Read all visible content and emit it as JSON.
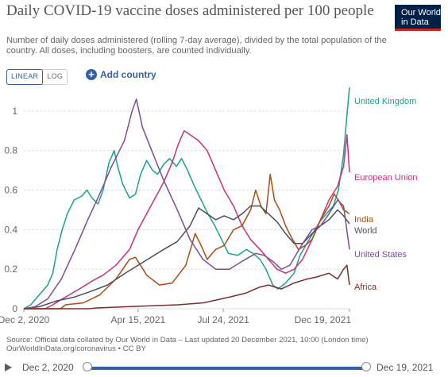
{
  "header": {
    "title": "Daily COVID-19 vaccine doses administered per 100 people",
    "subtitle": "Number of daily doses administered (rolling 7-day average), divided by the total population of the country. All doses, including boosters, are counted individually.",
    "logo_line1": "Our World",
    "logo_line2": "in Data"
  },
  "controls": {
    "linear_label": "LINEAR",
    "log_label": "LOG",
    "add_country_label": "Add country"
  },
  "colors": {
    "United Kingdom": "#18a28f",
    "European Union": "#cf2f76",
    "India": "#b04a12",
    "World": "#4a4f5e",
    "United States": "#7b4d9c",
    "Africa": "#7c2f2a"
  },
  "chart_data": {
    "type": "line",
    "title": "Daily COVID-19 vaccine doses administered per 100 people",
    "x_ticks": [
      "Dec 2, 2020",
      "Apr 15, 2021",
      "Jul 24, 2021",
      "Dec 19, 2021"
    ],
    "x_range": [
      "2020-12-02",
      "2021-12-19"
    ],
    "y_ticks": [
      "0",
      "0.2",
      "0.4",
      "0.6",
      "0.8",
      "1"
    ],
    "ylim": [
      0,
      1.12
    ],
    "grid": "horizontal dashed",
    "legend": "right, line-end labels",
    "series": [
      {
        "name": "United Kingdom",
        "points": [
          [
            "2020-12-02",
            0
          ],
          [
            "2020-12-10",
            0.02
          ],
          [
            "2020-12-20",
            0.07
          ],
          [
            "2020-12-30",
            0.12
          ],
          [
            "2021-01-05",
            0.18
          ],
          [
            "2021-01-10",
            0.3
          ],
          [
            "2021-01-16",
            0.4
          ],
          [
            "2021-01-22",
            0.48
          ],
          [
            "2021-01-30",
            0.55
          ],
          [
            "2021-02-08",
            0.57
          ],
          [
            "2021-02-14",
            0.6
          ],
          [
            "2021-02-20",
            0.56
          ],
          [
            "2021-02-27",
            0.53
          ],
          [
            "2021-03-05",
            0.6
          ],
          [
            "2021-03-12",
            0.74
          ],
          [
            "2021-03-18",
            0.8
          ],
          [
            "2021-03-22",
            0.72
          ],
          [
            "2021-03-28",
            0.63
          ],
          [
            "2021-04-05",
            0.56
          ],
          [
            "2021-04-12",
            0.58
          ],
          [
            "2021-04-18",
            0.68
          ],
          [
            "2021-04-25",
            0.75
          ],
          [
            "2021-05-02",
            0.7
          ],
          [
            "2021-05-08",
            0.68
          ],
          [
            "2021-05-15",
            0.73
          ],
          [
            "2021-05-22",
            0.76
          ],
          [
            "2021-05-30",
            0.72
          ],
          [
            "2021-06-05",
            0.76
          ],
          [
            "2021-06-12",
            0.7
          ],
          [
            "2021-06-20",
            0.62
          ],
          [
            "2021-06-28",
            0.55
          ],
          [
            "2021-07-06",
            0.48
          ],
          [
            "2021-07-14",
            0.42
          ],
          [
            "2021-07-22",
            0.35
          ],
          [
            "2021-07-30",
            0.28
          ],
          [
            "2021-08-10",
            0.27
          ],
          [
            "2021-08-20",
            0.3
          ],
          [
            "2021-08-28",
            0.28
          ],
          [
            "2021-09-05",
            0.25
          ],
          [
            "2021-09-12",
            0.2
          ],
          [
            "2021-09-20",
            0.12
          ],
          [
            "2021-09-26",
            0.1
          ],
          [
            "2021-10-05",
            0.13
          ],
          [
            "2021-10-15",
            0.18
          ],
          [
            "2021-10-22",
            0.27
          ],
          [
            "2021-10-30",
            0.33
          ],
          [
            "2021-11-06",
            0.38
          ],
          [
            "2021-11-14",
            0.44
          ],
          [
            "2021-11-22",
            0.48
          ],
          [
            "2021-11-30",
            0.52
          ],
          [
            "2021-12-06",
            0.6
          ],
          [
            "2021-12-12",
            0.78
          ],
          [
            "2021-12-16",
            0.98
          ],
          [
            "2021-12-19",
            1.12
          ]
        ]
      },
      {
        "name": "European Union",
        "points": [
          [
            "2020-12-02",
            0
          ],
          [
            "2020-12-27",
            0
          ],
          [
            "2021-01-05",
            0.02
          ],
          [
            "2021-01-20",
            0.06
          ],
          [
            "2021-02-05",
            0.1
          ],
          [
            "2021-02-20",
            0.14
          ],
          [
            "2021-03-05",
            0.17
          ],
          [
            "2021-03-20",
            0.22
          ],
          [
            "2021-04-05",
            0.3
          ],
          [
            "2021-04-15",
            0.4
          ],
          [
            "2021-04-25",
            0.48
          ],
          [
            "2021-05-05",
            0.56
          ],
          [
            "2021-05-15",
            0.64
          ],
          [
            "2021-05-25",
            0.74
          ],
          [
            "2021-06-01",
            0.83
          ],
          [
            "2021-06-08",
            0.9
          ],
          [
            "2021-06-15",
            0.88
          ],
          [
            "2021-06-25",
            0.85
          ],
          [
            "2021-07-05",
            0.8
          ],
          [
            "2021-07-15",
            0.7
          ],
          [
            "2021-07-25",
            0.6
          ],
          [
            "2021-08-05",
            0.52
          ],
          [
            "2021-08-15",
            0.42
          ],
          [
            "2021-08-25",
            0.35
          ],
          [
            "2021-09-05",
            0.3
          ],
          [
            "2021-09-15",
            0.25
          ],
          [
            "2021-09-25",
            0.2
          ],
          [
            "2021-10-05",
            0.18
          ],
          [
            "2021-10-15",
            0.2
          ],
          [
            "2021-10-25",
            0.25
          ],
          [
            "2021-11-05",
            0.35
          ],
          [
            "2021-11-15",
            0.45
          ],
          [
            "2021-11-25",
            0.55
          ],
          [
            "2021-12-05",
            0.62
          ],
          [
            "2021-12-12",
            0.72
          ],
          [
            "2021-12-16",
            0.88
          ],
          [
            "2021-12-19",
            0.69
          ]
        ]
      },
      {
        "name": "India",
        "points": [
          [
            "2020-12-02",
            0
          ],
          [
            "2021-01-14",
            0
          ],
          [
            "2021-01-20",
            0.02
          ],
          [
            "2021-02-10",
            0.03
          ],
          [
            "2021-03-01",
            0.07
          ],
          [
            "2021-03-20",
            0.15
          ],
          [
            "2021-04-05",
            0.25
          ],
          [
            "2021-04-12",
            0.26
          ],
          [
            "2021-04-25",
            0.17
          ],
          [
            "2021-05-10",
            0.12
          ],
          [
            "2021-05-25",
            0.13
          ],
          [
            "2021-06-10",
            0.22
          ],
          [
            "2021-06-21",
            0.38
          ],
          [
            "2021-06-28",
            0.32
          ],
          [
            "2021-07-05",
            0.25
          ],
          [
            "2021-07-15",
            0.3
          ],
          [
            "2021-07-25",
            0.32
          ],
          [
            "2021-08-05",
            0.4
          ],
          [
            "2021-08-15",
            0.42
          ],
          [
            "2021-08-25",
            0.5
          ],
          [
            "2021-08-31",
            0.6
          ],
          [
            "2021-09-06",
            0.52
          ],
          [
            "2021-09-12",
            0.48
          ],
          [
            "2021-09-17",
            0.68
          ],
          [
            "2021-09-22",
            0.55
          ],
          [
            "2021-09-28",
            0.5
          ],
          [
            "2021-10-05",
            0.42
          ],
          [
            "2021-10-12",
            0.36
          ],
          [
            "2021-10-20",
            0.3
          ],
          [
            "2021-10-28",
            0.32
          ],
          [
            "2021-11-05",
            0.35
          ],
          [
            "2021-11-15",
            0.45
          ],
          [
            "2021-11-25",
            0.52
          ],
          [
            "2021-12-01",
            0.58
          ],
          [
            "2021-12-06",
            0.55
          ],
          [
            "2021-12-12",
            0.5
          ],
          [
            "2021-12-19",
            0.48
          ]
        ]
      },
      {
        "name": "World",
        "points": [
          [
            "2020-12-02",
            0
          ],
          [
            "2020-12-20",
            0.01
          ],
          [
            "2021-01-10",
            0.04
          ],
          [
            "2021-01-31",
            0.06
          ],
          [
            "2021-02-20",
            0.09
          ],
          [
            "2021-03-10",
            0.12
          ],
          [
            "2021-03-31",
            0.18
          ],
          [
            "2021-04-15",
            0.22
          ],
          [
            "2021-04-30",
            0.26
          ],
          [
            "2021-05-15",
            0.3
          ],
          [
            "2021-05-31",
            0.34
          ],
          [
            "2021-06-15",
            0.42
          ],
          [
            "2021-06-25",
            0.51
          ],
          [
            "2021-07-05",
            0.48
          ],
          [
            "2021-07-15",
            0.45
          ],
          [
            "2021-07-25",
            0.47
          ],
          [
            "2021-08-05",
            0.45
          ],
          [
            "2021-08-15",
            0.48
          ],
          [
            "2021-08-25",
            0.52
          ],
          [
            "2021-09-05",
            0.52
          ],
          [
            "2021-09-15",
            0.48
          ],
          [
            "2021-09-25",
            0.44
          ],
          [
            "2021-10-05",
            0.38
          ],
          [
            "2021-10-15",
            0.33
          ],
          [
            "2021-10-25",
            0.33
          ],
          [
            "2021-11-05",
            0.38
          ],
          [
            "2021-11-15",
            0.42
          ],
          [
            "2021-11-25",
            0.45
          ],
          [
            "2021-12-05",
            0.5
          ],
          [
            "2021-12-12",
            0.47
          ],
          [
            "2021-12-19",
            0.43
          ]
        ]
      },
      {
        "name": "United States",
        "points": [
          [
            "2020-12-02",
            0
          ],
          [
            "2020-12-15",
            0.01
          ],
          [
            "2020-12-30",
            0.05
          ],
          [
            "2021-01-15",
            0.15
          ],
          [
            "2021-01-31",
            0.3
          ],
          [
            "2021-02-15",
            0.45
          ],
          [
            "2021-03-01",
            0.58
          ],
          [
            "2021-03-15",
            0.72
          ],
          [
            "2021-03-30",
            0.85
          ],
          [
            "2021-04-08",
            1.0
          ],
          [
            "2021-04-13",
            1.06
          ],
          [
            "2021-04-20",
            0.92
          ],
          [
            "2021-05-01",
            0.8
          ],
          [
            "2021-05-15",
            0.65
          ],
          [
            "2021-05-31",
            0.5
          ],
          [
            "2021-06-15",
            0.35
          ],
          [
            "2021-06-30",
            0.25
          ],
          [
            "2021-07-15",
            0.2
          ],
          [
            "2021-07-31",
            0.2
          ],
          [
            "2021-08-15",
            0.24
          ],
          [
            "2021-08-31",
            0.28
          ],
          [
            "2021-09-10",
            0.27
          ],
          [
            "2021-09-20",
            0.24
          ],
          [
            "2021-09-30",
            0.2
          ],
          [
            "2021-10-10",
            0.22
          ],
          [
            "2021-10-25",
            0.33
          ],
          [
            "2021-11-05",
            0.4
          ],
          [
            "2021-11-15",
            0.42
          ],
          [
            "2021-11-25",
            0.48
          ],
          [
            "2021-12-05",
            0.55
          ],
          [
            "2021-12-12",
            0.52
          ],
          [
            "2021-12-19",
            0.3
          ]
        ]
      },
      {
        "name": "Africa",
        "points": [
          [
            "2020-12-02",
            0
          ],
          [
            "2021-02-15",
            0
          ],
          [
            "2021-03-01",
            0.005
          ],
          [
            "2021-04-01",
            0.01
          ],
          [
            "2021-05-01",
            0.015
          ],
          [
            "2021-06-01",
            0.02
          ],
          [
            "2021-07-01",
            0.03
          ],
          [
            "2021-08-01",
            0.06
          ],
          [
            "2021-08-20",
            0.08
          ],
          [
            "2021-09-05",
            0.11
          ],
          [
            "2021-09-15",
            0.12
          ],
          [
            "2021-09-30",
            0.1
          ],
          [
            "2021-10-15",
            0.13
          ],
          [
            "2021-10-30",
            0.15
          ],
          [
            "2021-11-10",
            0.16
          ],
          [
            "2021-11-25",
            0.18
          ],
          [
            "2021-12-05",
            0.15
          ],
          [
            "2021-12-12",
            0.2
          ],
          [
            "2021-12-16",
            0.22
          ],
          [
            "2021-12-19",
            0.12
          ]
        ]
      }
    ]
  },
  "footer": {
    "source_line1": "Source: Official data collated by Our World in Data – Last updated 20 December 2021, 10:00 (London time)",
    "source_line2": "OurWorldInData.org/coronavirus • CC BY"
  },
  "timeline": {
    "start_label": "Dec 2, 2020",
    "end_label": "Dec 19, 2021"
  }
}
